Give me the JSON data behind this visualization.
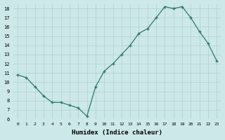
{
  "x": [
    0,
    1,
    2,
    3,
    4,
    5,
    6,
    7,
    8,
    9,
    10,
    11,
    12,
    13,
    14,
    15,
    16,
    17,
    18,
    19,
    20,
    21,
    22,
    23
  ],
  "y": [
    10.8,
    10.5,
    9.5,
    8.5,
    7.8,
    7.8,
    7.5,
    7.2,
    6.3,
    9.5,
    11.2,
    12.0,
    13.0,
    14.0,
    15.3,
    15.8,
    17.0,
    18.2,
    18.0,
    18.2,
    17.0,
    15.5,
    14.2,
    12.3
  ],
  "xlabel": "Humidex (Indice chaleur)",
  "ylim": [
    6,
    18.5
  ],
  "ytick_min": 6,
  "ytick_max": 18,
  "xtick_min": 0,
  "xtick_max": 23,
  "line_color": "#2d7a6b",
  "bg_color": "#cde8e8",
  "grid_color": "#b0d0d0"
}
